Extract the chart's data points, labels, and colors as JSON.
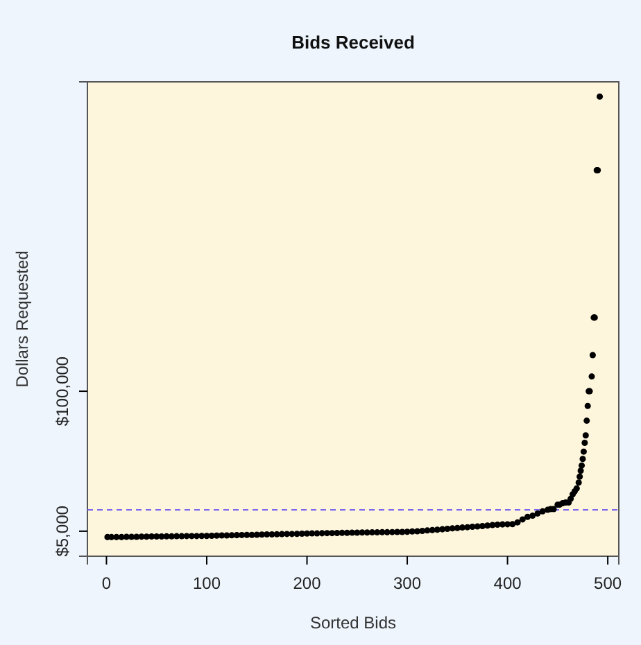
{
  "chart_data": {
    "type": "scatter",
    "title": "Bids Received",
    "xlabel": "Sorted Bids",
    "ylabel": "Dollars Requested",
    "x": [
      1,
      5,
      10,
      15,
      20,
      25,
      30,
      35,
      40,
      45,
      50,
      55,
      60,
      65,
      70,
      75,
      80,
      85,
      90,
      95,
      100,
      105,
      110,
      115,
      120,
      125,
      130,
      135,
      140,
      145,
      150,
      155,
      160,
      165,
      170,
      175,
      180,
      185,
      190,
      195,
      200,
      205,
      210,
      215,
      220,
      225,
      230,
      235,
      240,
      245,
      250,
      255,
      260,
      265,
      270,
      275,
      280,
      285,
      290,
      295,
      300,
      305,
      310,
      315,
      320,
      325,
      330,
      335,
      340,
      345,
      350,
      355,
      360,
      365,
      370,
      375,
      380,
      385,
      390,
      395,
      400,
      405,
      410,
      415,
      420,
      425,
      430,
      435,
      440,
      443,
      446,
      450,
      452,
      455,
      458,
      461,
      463,
      465,
      467,
      469,
      471,
      472,
      473,
      474,
      475,
      476,
      477,
      478,
      479,
      480,
      481,
      482,
      484,
      485,
      486,
      487,
      489,
      490,
      492
    ],
    "values": [
      1000,
      1000,
      1000,
      1000,
      1200,
      1200,
      1200,
      1300,
      1300,
      1400,
      1400,
      1400,
      1500,
      1500,
      1600,
      1600,
      1700,
      1700,
      1700,
      1800,
      1800,
      1900,
      2000,
      2100,
      2100,
      2200,
      2300,
      2400,
      2500,
      2500,
      2600,
      2700,
      2800,
      2800,
      2900,
      3000,
      3100,
      3100,
      3200,
      3300,
      3400,
      3500,
      3500,
      3600,
      3700,
      3700,
      3800,
      3900,
      3900,
      4000,
      4000,
      4100,
      4100,
      4200,
      4200,
      4300,
      4300,
      4400,
      4500,
      4500,
      4600,
      4800,
      4900,
      5200,
      5500,
      5800,
      6000,
      6300,
      6600,
      6900,
      7200,
      7500,
      7700,
      8000,
      8200,
      8500,
      8800,
      9200,
      9400,
      9600,
      9700,
      9800,
      11000,
      13000,
      14700,
      15500,
      17000,
      18500,
      19500,
      20000,
      20000,
      23000,
      23000,
      24000,
      24500,
      24500,
      27000,
      30000,
      32000,
      34000,
      38000,
      42000,
      46000,
      49600,
      54000,
      59000,
      65000,
      70000,
      80000,
      90000,
      100000,
      100000,
      110000,
      124500,
      150000,
      150000,
      250000,
      250000,
      300000
    ],
    "color": "#000000",
    "marker": "circle",
    "xlim": [
      -19,
      511
    ],
    "xticks": [
      0,
      100,
      200,
      300,
      400,
      500
    ],
    "ylim": [
      -12000,
      310000
    ],
    "yticks": [
      {
        "value": 5000,
        "label": "$5,000"
      },
      {
        "value": 100000,
        "label": "$100,000"
      }
    ],
    "ref_lines": [
      {
        "axis": "y",
        "value": 19500,
        "color": "#7b68ee",
        "line_style": "dashed"
      }
    ],
    "grid": false
  }
}
